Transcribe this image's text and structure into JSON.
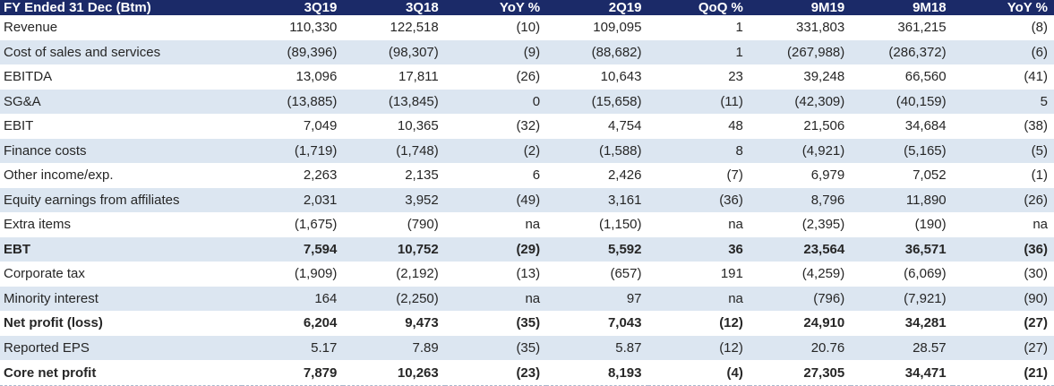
{
  "colors": {
    "header_bg": "#1B2A68",
    "header_text": "#FFFFFF",
    "alt_row_bg": "#DCE6F1",
    "text": "#262626"
  },
  "table": {
    "header": [
      "FY Ended 31 Dec (Btm)",
      "3Q19",
      "3Q18",
      "YoY %",
      "2Q19",
      "QoQ %",
      "9M19",
      "9M18",
      "YoY %"
    ],
    "rows": [
      {
        "label": "Revenue",
        "bold": false,
        "values": [
          "110,330",
          "122,518",
          "(10)",
          "109,095",
          "1",
          "331,803",
          "361,215",
          "(8)"
        ]
      },
      {
        "label": "Cost of sales and services",
        "bold": false,
        "values": [
          "(89,396)",
          "(98,307)",
          "(9)",
          "(88,682)",
          "1",
          "(267,988)",
          "(286,372)",
          "(6)"
        ]
      },
      {
        "label": "EBITDA",
        "bold": false,
        "values": [
          "13,096",
          "17,811",
          "(26)",
          "10,643",
          "23",
          "39,248",
          "66,560",
          "(41)"
        ]
      },
      {
        "label": "SG&A",
        "bold": false,
        "values": [
          "(13,885)",
          "(13,845)",
          "0",
          "(15,658)",
          "(11)",
          "(42,309)",
          "(40,159)",
          "5"
        ]
      },
      {
        "label": "EBIT",
        "bold": false,
        "values": [
          "7,049",
          "10,365",
          "(32)",
          "4,754",
          "48",
          "21,506",
          "34,684",
          "(38)"
        ]
      },
      {
        "label": "Finance costs",
        "bold": false,
        "values": [
          "(1,719)",
          "(1,748)",
          "(2)",
          "(1,588)",
          "8",
          "(4,921)",
          "(5,165)",
          "(5)"
        ]
      },
      {
        "label": "Other income/exp.",
        "bold": false,
        "values": [
          "2,263",
          "2,135",
          "6",
          "2,426",
          "(7)",
          "6,979",
          "7,052",
          "(1)"
        ]
      },
      {
        "label": "Equity earnings from affiliates",
        "bold": false,
        "values": [
          "2,031",
          "3,952",
          "(49)",
          "3,161",
          "(36)",
          "8,796",
          "11,890",
          "(26)"
        ]
      },
      {
        "label": "Extra items",
        "bold": false,
        "values": [
          "(1,675)",
          "(790)",
          "na",
          "(1,150)",
          "na",
          "(2,395)",
          "(190)",
          "na"
        ]
      },
      {
        "label": "EBT",
        "bold": true,
        "values": [
          "7,594",
          "10,752",
          "(29)",
          "5,592",
          "36",
          "23,564",
          "36,571",
          "(36)"
        ]
      },
      {
        "label": "Corporate tax",
        "bold": false,
        "values": [
          "(1,909)",
          "(2,192)",
          "(13)",
          "(657)",
          "191",
          "(4,259)",
          "(6,069)",
          "(30)"
        ]
      },
      {
        "label": "Minority interest",
        "bold": false,
        "values": [
          "164",
          "(2,250)",
          "na",
          "97",
          "na",
          "(796)",
          "(7,921)",
          "(90)"
        ]
      },
      {
        "label": "Net profit (loss)",
        "bold": true,
        "values": [
          "6,204",
          "9,473",
          "(35)",
          "7,043",
          "(12)",
          "24,910",
          "34,281",
          "(27)"
        ]
      },
      {
        "label": "Reported EPS",
        "bold": false,
        "values": [
          "5.17",
          "7.89",
          "(35)",
          "5.87",
          "(12)",
          "20.76",
          "28.57",
          "(27)"
        ]
      },
      {
        "label": "Core net profit",
        "bold": true,
        "values": [
          "7,879",
          "10,263",
          "(23)",
          "8,193",
          "(4)",
          "27,305",
          "34,471",
          "(21)"
        ]
      }
    ]
  }
}
